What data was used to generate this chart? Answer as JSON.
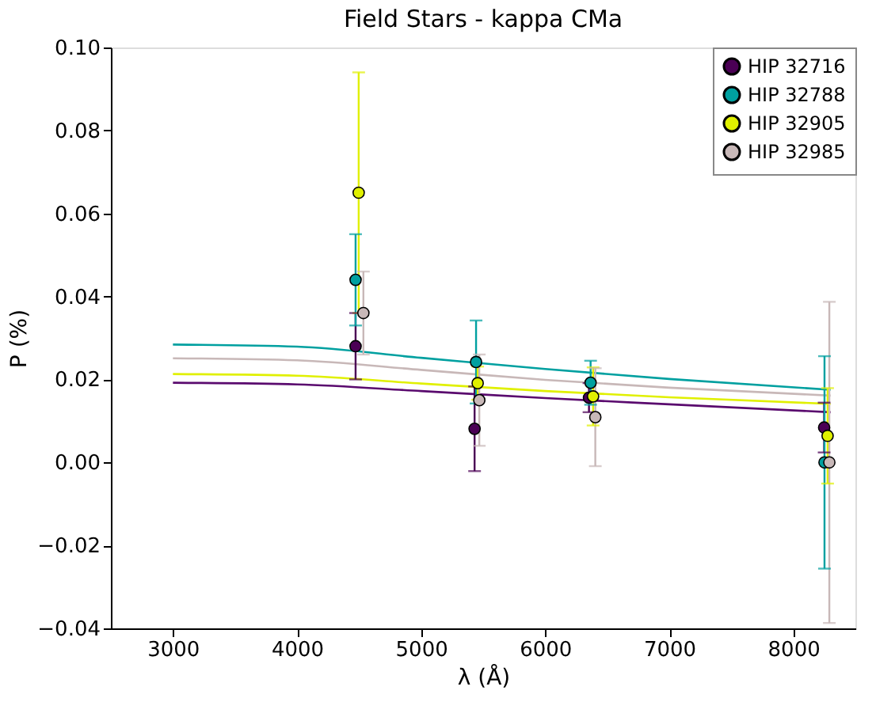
{
  "chart_data": {
    "type": "scatter",
    "title": "Field Stars - kappa CMa",
    "xlabel": "λ (Å)",
    "ylabel": "P (%)",
    "xlim": [
      2500,
      8500
    ],
    "xticks": [
      3000,
      4000,
      5000,
      6000,
      7000,
      8000
    ],
    "ylim": [
      -0.04,
      0.1
    ],
    "yticks": [
      {
        "value": -0.04,
        "label": "−0.04"
      },
      {
        "value": -0.02,
        "label": "−0.02"
      },
      {
        "value": 0,
        "label": "0.00"
      },
      {
        "value": 0.02,
        "label": "0.02"
      },
      {
        "value": 0.04,
        "label": "0.04"
      },
      {
        "value": 0.06,
        "label": "0.06"
      },
      {
        "value": 0.08,
        "label": "0.08"
      },
      {
        "value": 0.1,
        "label": "0.10"
      }
    ],
    "grid": false,
    "legend": "top right",
    "series": [
      {
        "name": "HIP 32716",
        "marker": "circle",
        "color": "#4b0055",
        "x": [
          4472,
          5431,
          6353,
          8248
        ],
        "values": [
          0.028,
          0.0081,
          0.0156,
          0.0084
        ],
        "errors": [
          0.008,
          0.0102,
          0.0035,
          0.006
        ]
      },
      {
        "name": "HIP 32788",
        "marker": "circle",
        "color": "#00a0a0",
        "x": [
          4472,
          5443,
          6366,
          8251
        ],
        "values": [
          0.044,
          0.0242,
          0.0192,
          0.0
        ],
        "errors": [
          0.011,
          0.01,
          0.0053,
          0.0256
        ]
      },
      {
        "name": "HIP 32905",
        "marker": "circle",
        "color": "#e0f000",
        "x": [
          4497,
          5456,
          6386,
          8276
        ],
        "values": [
          0.065,
          0.0191,
          0.0159,
          0.0064
        ],
        "errors": [
          0.029,
          0.004,
          0.007,
          0.0115
        ]
      },
      {
        "name": "HIP 32985",
        "marker": "circle",
        "color": "#c8b8b8",
        "x": [
          4535,
          5469,
          6404,
          8290
        ],
        "values": [
          0.036,
          0.015,
          0.0109,
          0.0
        ],
        "errors": [
          0.01,
          0.011,
          0.0118,
          0.0387
        ]
      },
      {
        "type": "line",
        "marker": "none",
        "color": "#5a0a6e",
        "x": [
          3000,
          4000,
          5000,
          6000,
          7000,
          8300
        ],
        "values": [
          0.0192,
          0.0188,
          0.0172,
          0.0155,
          0.014,
          0.0121
        ]
      },
      {
        "type": "line",
        "marker": "none",
        "color": "#00a0a0",
        "x": [
          3000,
          4000,
          5000,
          6000,
          7000,
          8300
        ],
        "values": [
          0.0284,
          0.0279,
          0.0252,
          0.0225,
          0.0201,
          0.0175
        ]
      },
      {
        "type": "line",
        "marker": "none",
        "color": "#e0f000",
        "x": [
          3000,
          4000,
          5000,
          6000,
          7000,
          8300
        ],
        "values": [
          0.0213,
          0.0209,
          0.019,
          0.0172,
          0.0157,
          0.0141
        ]
      },
      {
        "type": "line",
        "marker": "none",
        "color": "#c8b8b8",
        "x": [
          3000,
          4000,
          5000,
          6000,
          7000,
          8300
        ],
        "values": [
          0.0251,
          0.0246,
          0.0223,
          0.0199,
          0.018,
          0.0161
        ]
      }
    ]
  }
}
